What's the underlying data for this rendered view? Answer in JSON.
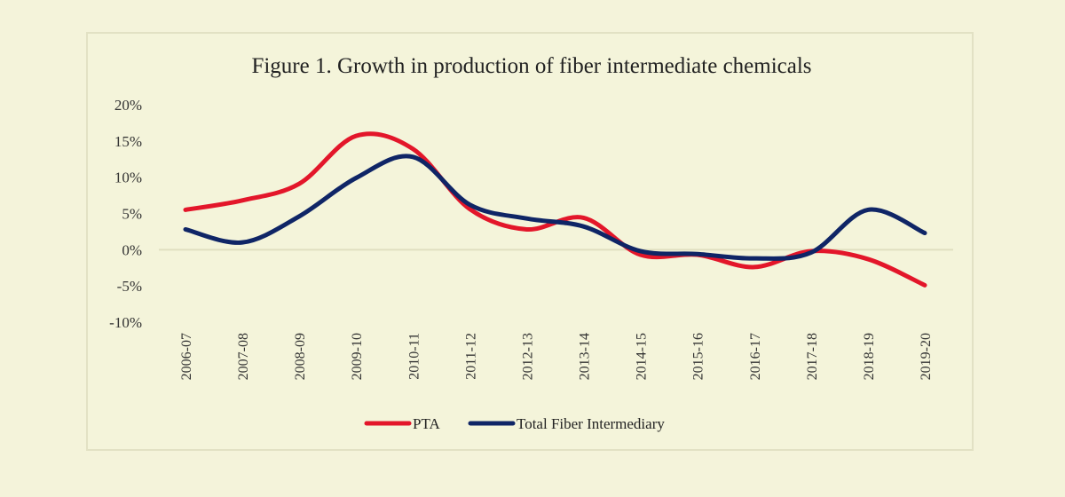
{
  "chart_data": {
    "type": "line",
    "title": "Figure 1. Growth in production of  fiber intermediate chemicals",
    "xlabel": "",
    "ylabel": "",
    "categories": [
      "2006-07",
      "2007-08",
      "2008-09",
      "2009-10",
      "2010-11",
      "2011-12",
      "2012-13",
      "2013-14",
      "2014-15",
      "2015-16",
      "2016-17",
      "2017-18",
      "2018-19",
      "2019-20"
    ],
    "y_ticks": [
      "20%",
      "15%",
      "10%",
      "5%",
      "0%",
      "-5%",
      "-10%"
    ],
    "y_tick_values": [
      20,
      15,
      10,
      5,
      0,
      -5,
      -10
    ],
    "ylim": [
      -10,
      20
    ],
    "y_unit": "%",
    "grid": false,
    "zero_line": true,
    "smoothed": true,
    "legend_position": "bottom",
    "series": [
      {
        "name": "PTA",
        "color": "#e3162a",
        "values": [
          5.5,
          6.8,
          9.1,
          15.7,
          13.9,
          5.6,
          2.8,
          4.4,
          -0.7,
          -0.7,
          -2.4,
          -0.2,
          -1.3,
          -4.9
        ]
      },
      {
        "name": "Total Fiber Intermediary",
        "color": "#0f2566",
        "values": [
          2.8,
          1.0,
          4.6,
          9.9,
          12.8,
          6.2,
          4.3,
          3.2,
          -0.2,
          -0.6,
          -1.2,
          -0.4,
          5.5,
          2.3
        ]
      }
    ]
  },
  "colors": {
    "background": "#f4f3da",
    "frame_border": "#e2e1c4",
    "zero_line": "#e0dfc0"
  }
}
